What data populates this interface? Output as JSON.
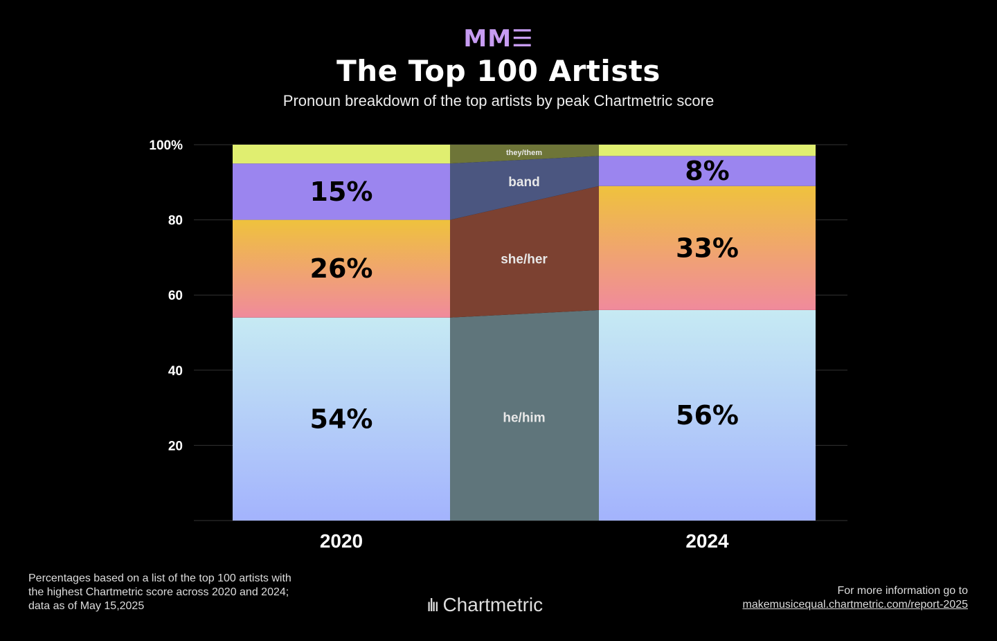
{
  "header": {
    "logo": "MM☰",
    "title": "The Top 100 Artists",
    "subtitle": "Pronoun breakdown of the top artists by peak Chartmetric score"
  },
  "chart_data": {
    "type": "bar",
    "stacked": true,
    "title": "The Top 100 Artists",
    "subtitle": "Pronoun breakdown of the top artists by peak Chartmetric score",
    "categories": [
      "2020",
      "2024"
    ],
    "ylim": [
      0,
      100
    ],
    "yticks": [
      "20",
      "40",
      "60",
      "80",
      "100%"
    ],
    "ytick_values": [
      20,
      40,
      60,
      80,
      100
    ],
    "grid": true,
    "series": [
      {
        "name": "he/him",
        "values": [
          54,
          56
        ],
        "labels": [
          "54%",
          "56%"
        ],
        "color_top": "#c6eaf3",
        "color_bottom": "#a3b3fd",
        "link_color": "#5f757b"
      },
      {
        "name": "she/her",
        "values": [
          26,
          33
        ],
        "labels": [
          "26%",
          "33%"
        ],
        "color_top": "#efc23d",
        "color_bottom": "#f08a9c",
        "link_color": "#7c4131"
      },
      {
        "name": "band",
        "values": [
          15,
          8
        ],
        "labels": [
          "15%",
          "8%"
        ],
        "color_top": "#9b85ef",
        "color_bottom": "#9b85ef",
        "link_color": "#4b5680"
      },
      {
        "name": "they/them",
        "values": [
          5,
          3
        ],
        "labels": [
          "",
          ""
        ],
        "color_top": "#e0ee70",
        "color_bottom": "#e0ee70",
        "link_color": "#6e7538"
      }
    ]
  },
  "footer": {
    "note": "Percentages based on a list of the top 100 artists with the highest Chartmetric score across 2020 and 2024; data as of May 15,2025",
    "brand": "Chartmetric",
    "more_label": "For more information go to",
    "more_link": "makemusicequal.chartmetric.com/report-2025"
  }
}
